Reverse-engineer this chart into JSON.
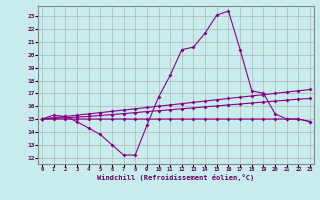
{
  "xlabel": "Windchill (Refroidissement éolien,°C)",
  "background_color": "#c8ecec",
  "line_color": "#880088",
  "grid_color": "#aaaaaa",
  "x_ticks": [
    0,
    1,
    2,
    3,
    4,
    5,
    6,
    7,
    8,
    9,
    10,
    11,
    12,
    13,
    14,
    15,
    16,
    17,
    18,
    19,
    20,
    21,
    22,
    23
  ],
  "y_ticks": [
    12,
    13,
    14,
    15,
    16,
    17,
    18,
    19,
    20,
    21,
    22,
    23
  ],
  "xlim": [
    -0.3,
    23.3
  ],
  "ylim": [
    11.5,
    23.8
  ],
  "line1_x": [
    0,
    1,
    2,
    3,
    4,
    5,
    6,
    7,
    8,
    9,
    10,
    11,
    12,
    13,
    14,
    15,
    16,
    17,
    18,
    19,
    20,
    21,
    22,
    23
  ],
  "line1_y": [
    15.0,
    15.3,
    15.2,
    14.8,
    14.3,
    13.8,
    13.0,
    12.2,
    12.2,
    14.5,
    16.7,
    18.4,
    20.4,
    20.6,
    21.7,
    23.1,
    23.4,
    20.4,
    17.2,
    17.0,
    15.4,
    15.0,
    15.0,
    14.8
  ],
  "line2_x": [
    0,
    1,
    2,
    3,
    4,
    5,
    6,
    7,
    8,
    9,
    10,
    11,
    12,
    13,
    14,
    15,
    16,
    17,
    18,
    19,
    20,
    21,
    22,
    23
  ],
  "line2_y": [
    15.0,
    15.1,
    15.2,
    15.3,
    15.4,
    15.5,
    15.6,
    15.7,
    15.8,
    15.9,
    16.0,
    16.1,
    16.2,
    16.3,
    16.4,
    16.5,
    16.6,
    16.7,
    16.8,
    16.9,
    17.0,
    17.1,
    17.2,
    17.3
  ],
  "line3_x": [
    0,
    1,
    2,
    3,
    4,
    5,
    6,
    7,
    8,
    9,
    10,
    11,
    12,
    13,
    14,
    15,
    16,
    17,
    18,
    19,
    20,
    21,
    22,
    23
  ],
  "line3_y": [
    15.0,
    15.05,
    15.1,
    15.15,
    15.2,
    15.28,
    15.35,
    15.42,
    15.5,
    15.58,
    15.65,
    15.72,
    15.8,
    15.87,
    15.95,
    16.02,
    16.1,
    16.17,
    16.25,
    16.32,
    16.4,
    16.47,
    16.55,
    16.6
  ],
  "line4_x": [
    0,
    1,
    2,
    3,
    4,
    5,
    6,
    7,
    8,
    9,
    10,
    11,
    12,
    13,
    14,
    15,
    16,
    17,
    18,
    19,
    20,
    21,
    22,
    23
  ],
  "line4_y": [
    15.0,
    15.0,
    15.0,
    15.0,
    15.0,
    15.0,
    15.0,
    15.0,
    15.0,
    15.0,
    15.0,
    15.0,
    15.0,
    15.0,
    15.0,
    15.0,
    15.0,
    15.0,
    15.0,
    15.0,
    15.0,
    15.0,
    15.0,
    14.8
  ]
}
